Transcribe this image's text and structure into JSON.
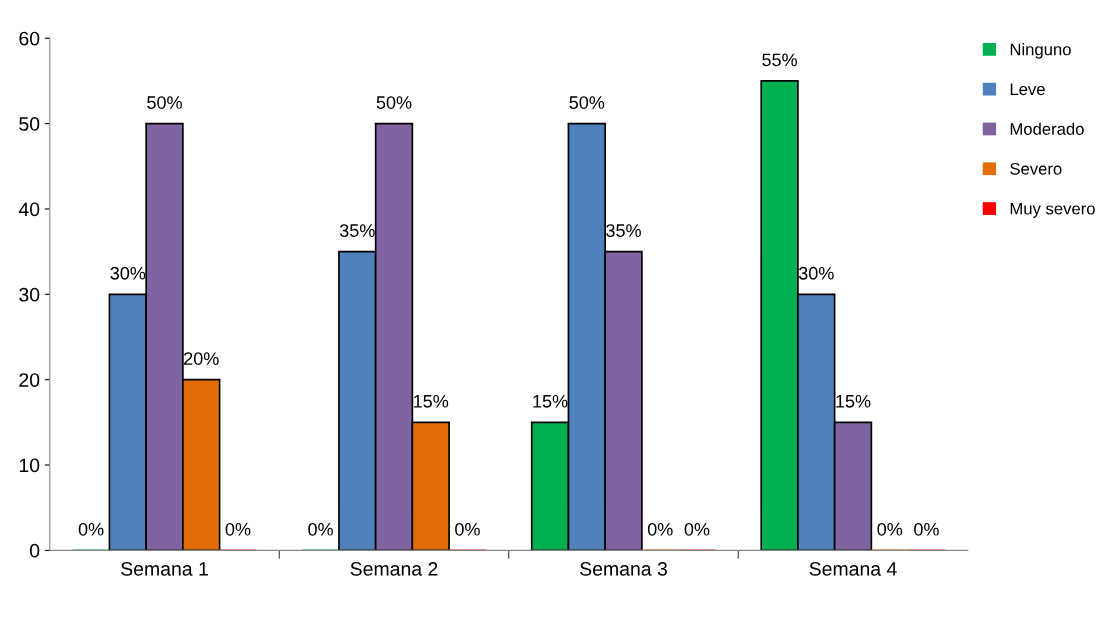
{
  "chart_data": {
    "type": "bar",
    "categories": [
      "Semana 1",
      "Semana 2",
      "Semana 3",
      "Semana 4"
    ],
    "ylim": [
      0,
      60
    ],
    "yticks": [
      0,
      10,
      20,
      30,
      40,
      50,
      60
    ],
    "grid": false,
    "legend": "right",
    "series": [
      {
        "name": "Ninguno",
        "color": "#00b050",
        "values": [
          0,
          0,
          15,
          55
        ],
        "value_labels": [
          "0%",
          "0%",
          "15%",
          "55%"
        ]
      },
      {
        "name": "Leve",
        "color": "#4f81bd",
        "values": [
          30,
          35,
          50,
          30
        ],
        "value_labels": [
          "30%",
          "35%",
          "50%",
          "30%"
        ]
      },
      {
        "name": "Moderado",
        "color": "#8064a2",
        "values": [
          50,
          50,
          35,
          15
        ],
        "value_labels": [
          "50%",
          "50%",
          "35%",
          "15%"
        ]
      },
      {
        "name": "Severo",
        "color": "#e36c09",
        "values": [
          20,
          15,
          0,
          0
        ],
        "value_labels": [
          "20%",
          "15%",
          "0%",
          "0%"
        ]
      },
      {
        "name": "Muy severo",
        "color": "#ff0000",
        "values": [
          0,
          0,
          0,
          0
        ],
        "value_labels": [
          "0%",
          "0%",
          "0%",
          "0%"
        ]
      }
    ]
  }
}
